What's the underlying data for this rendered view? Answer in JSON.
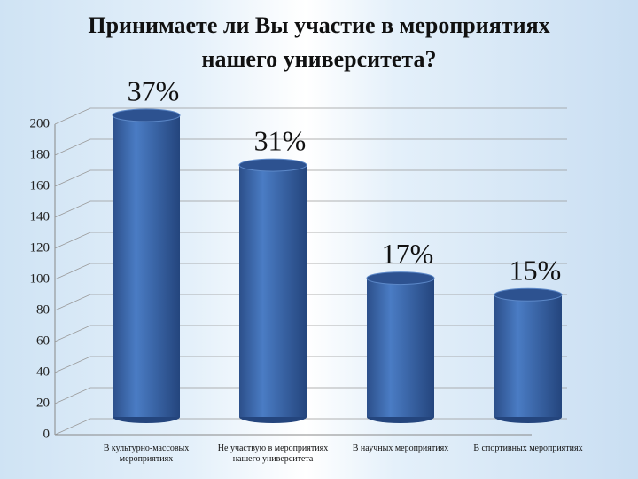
{
  "chart_data": {
    "type": "bar",
    "title": "Принимаете ли Вы участие в мероприятиях нашего университета?",
    "categories": [
      "В культурно-массовых мероприятиях",
      "Не участвую в мероприятиях нашего университета",
      "В научных мероприятиях",
      "В спортивных мероприятиях"
    ],
    "values": [
      200,
      167,
      92,
      81
    ],
    "annotations": [
      "37%",
      "31%",
      "17%",
      "15%"
    ],
    "color": "#3f6db3",
    "ylim": [
      0,
      200
    ],
    "yticks": [
      0,
      20,
      40,
      60,
      80,
      100,
      120,
      140,
      160,
      180,
      200
    ],
    "grid": true
  }
}
